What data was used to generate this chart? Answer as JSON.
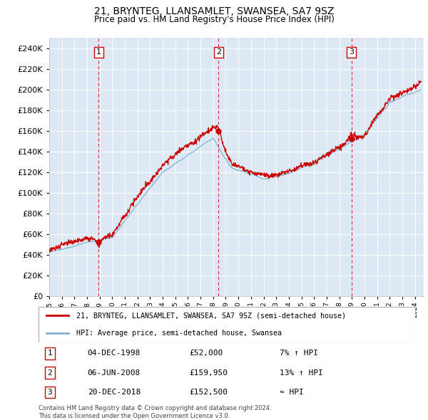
{
  "title": "21, BRYNTEG, LLANSAMLET, SWANSEA, SA7 9SZ",
  "subtitle": "Price paid vs. HM Land Registry's House Price Index (HPI)",
  "ylim": [
    0,
    250000
  ],
  "yticks": [
    0,
    20000,
    40000,
    60000,
    80000,
    100000,
    120000,
    140000,
    160000,
    180000,
    200000,
    220000,
    240000
  ],
  "line1_color": "#cc0000",
  "line2_color": "#7fb3d3",
  "vline_color": "#cc0000",
  "marker_color": "#cc0000",
  "transactions": [
    {
      "date_num": 1998.92,
      "price": 52000,
      "label": "1"
    },
    {
      "date_num": 2008.43,
      "price": 159950,
      "label": "2"
    },
    {
      "date_num": 2018.97,
      "price": 152500,
      "label": "3"
    }
  ],
  "legend_line1": "21, BRYNTEG, LLANSAMLET, SWANSEA, SA7 9SZ (semi-detached house)",
  "legend_line2": "HPI: Average price, semi-detached house, Swansea",
  "table_rows": [
    [
      "1",
      "04-DEC-1998",
      "£52,000",
      "7% ↑ HPI"
    ],
    [
      "2",
      "06-JUN-2008",
      "£159,950",
      "13% ↑ HPI"
    ],
    [
      "3",
      "20-DEC-2018",
      "£152,500",
      "≈ HPI"
    ]
  ],
  "footer": "Contains HM Land Registry data © Crown copyright and database right 2024.\nThis data is licensed under the Open Government Licence v3.0.",
  "background_color": "#ffffff",
  "plot_bg_color": "#dde8f5"
}
